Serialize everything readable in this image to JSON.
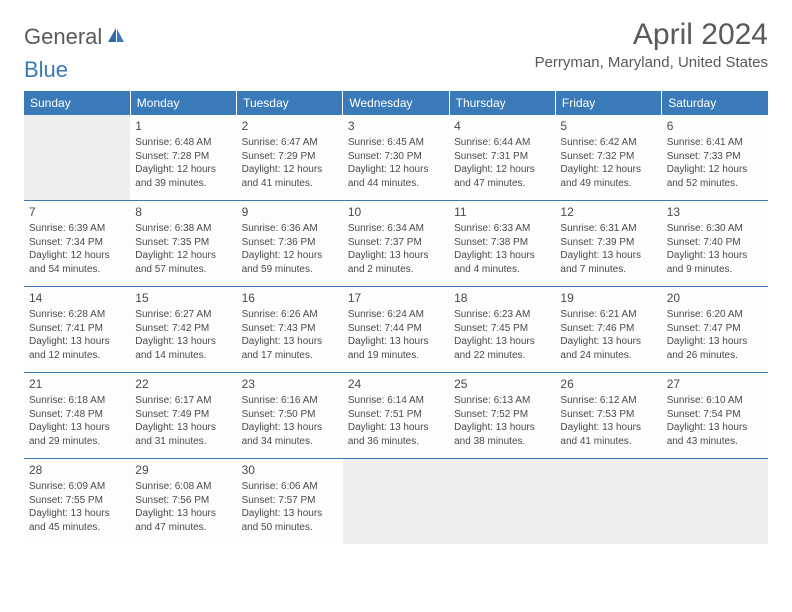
{
  "logo": {
    "text1": "General",
    "text2": "Blue"
  },
  "title": "April 2024",
  "location": "Perryman, Maryland, United States",
  "colors": {
    "header_bg": "#3a7ab8",
    "header_text": "#ffffff",
    "text": "#4a4a4a",
    "title_text": "#595959",
    "empty_bg": "#eeeeee",
    "border": "#3a7ab8"
  },
  "day_headers": [
    "Sunday",
    "Monday",
    "Tuesday",
    "Wednesday",
    "Thursday",
    "Friday",
    "Saturday"
  ],
  "weeks": [
    [
      null,
      {
        "n": "1",
        "sr": "6:48 AM",
        "ss": "7:28 PM",
        "dl": "12 hours and 39 minutes."
      },
      {
        "n": "2",
        "sr": "6:47 AM",
        "ss": "7:29 PM",
        "dl": "12 hours and 41 minutes."
      },
      {
        "n": "3",
        "sr": "6:45 AM",
        "ss": "7:30 PM",
        "dl": "12 hours and 44 minutes."
      },
      {
        "n": "4",
        "sr": "6:44 AM",
        "ss": "7:31 PM",
        "dl": "12 hours and 47 minutes."
      },
      {
        "n": "5",
        "sr": "6:42 AM",
        "ss": "7:32 PM",
        "dl": "12 hours and 49 minutes."
      },
      {
        "n": "6",
        "sr": "6:41 AM",
        "ss": "7:33 PM",
        "dl": "12 hours and 52 minutes."
      }
    ],
    [
      {
        "n": "7",
        "sr": "6:39 AM",
        "ss": "7:34 PM",
        "dl": "12 hours and 54 minutes."
      },
      {
        "n": "8",
        "sr": "6:38 AM",
        "ss": "7:35 PM",
        "dl": "12 hours and 57 minutes."
      },
      {
        "n": "9",
        "sr": "6:36 AM",
        "ss": "7:36 PM",
        "dl": "12 hours and 59 minutes."
      },
      {
        "n": "10",
        "sr": "6:34 AM",
        "ss": "7:37 PM",
        "dl": "13 hours and 2 minutes."
      },
      {
        "n": "11",
        "sr": "6:33 AM",
        "ss": "7:38 PM",
        "dl": "13 hours and 4 minutes."
      },
      {
        "n": "12",
        "sr": "6:31 AM",
        "ss": "7:39 PM",
        "dl": "13 hours and 7 minutes."
      },
      {
        "n": "13",
        "sr": "6:30 AM",
        "ss": "7:40 PM",
        "dl": "13 hours and 9 minutes."
      }
    ],
    [
      {
        "n": "14",
        "sr": "6:28 AM",
        "ss": "7:41 PM",
        "dl": "13 hours and 12 minutes."
      },
      {
        "n": "15",
        "sr": "6:27 AM",
        "ss": "7:42 PM",
        "dl": "13 hours and 14 minutes."
      },
      {
        "n": "16",
        "sr": "6:26 AM",
        "ss": "7:43 PM",
        "dl": "13 hours and 17 minutes."
      },
      {
        "n": "17",
        "sr": "6:24 AM",
        "ss": "7:44 PM",
        "dl": "13 hours and 19 minutes."
      },
      {
        "n": "18",
        "sr": "6:23 AM",
        "ss": "7:45 PM",
        "dl": "13 hours and 22 minutes."
      },
      {
        "n": "19",
        "sr": "6:21 AM",
        "ss": "7:46 PM",
        "dl": "13 hours and 24 minutes."
      },
      {
        "n": "20",
        "sr": "6:20 AM",
        "ss": "7:47 PM",
        "dl": "13 hours and 26 minutes."
      }
    ],
    [
      {
        "n": "21",
        "sr": "6:18 AM",
        "ss": "7:48 PM",
        "dl": "13 hours and 29 minutes."
      },
      {
        "n": "22",
        "sr": "6:17 AM",
        "ss": "7:49 PM",
        "dl": "13 hours and 31 minutes."
      },
      {
        "n": "23",
        "sr": "6:16 AM",
        "ss": "7:50 PM",
        "dl": "13 hours and 34 minutes."
      },
      {
        "n": "24",
        "sr": "6:14 AM",
        "ss": "7:51 PM",
        "dl": "13 hours and 36 minutes."
      },
      {
        "n": "25",
        "sr": "6:13 AM",
        "ss": "7:52 PM",
        "dl": "13 hours and 38 minutes."
      },
      {
        "n": "26",
        "sr": "6:12 AM",
        "ss": "7:53 PM",
        "dl": "13 hours and 41 minutes."
      },
      {
        "n": "27",
        "sr": "6:10 AM",
        "ss": "7:54 PM",
        "dl": "13 hours and 43 minutes."
      }
    ],
    [
      {
        "n": "28",
        "sr": "6:09 AM",
        "ss": "7:55 PM",
        "dl": "13 hours and 45 minutes."
      },
      {
        "n": "29",
        "sr": "6:08 AM",
        "ss": "7:56 PM",
        "dl": "13 hours and 47 minutes."
      },
      {
        "n": "30",
        "sr": "6:06 AM",
        "ss": "7:57 PM",
        "dl": "13 hours and 50 minutes."
      },
      null,
      null,
      null,
      null
    ]
  ],
  "labels": {
    "sunrise": "Sunrise:",
    "sunset": "Sunset:",
    "daylight": "Daylight:"
  }
}
